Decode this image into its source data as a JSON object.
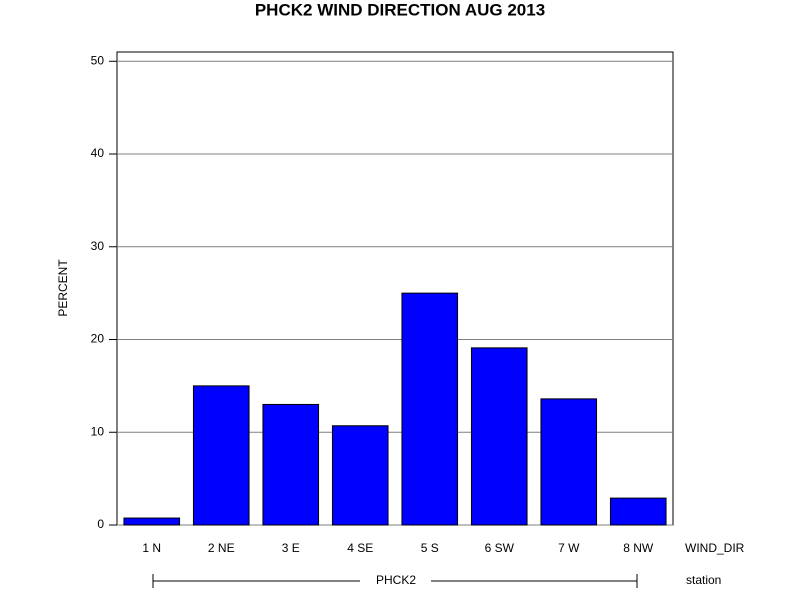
{
  "chart_data": {
    "type": "bar",
    "title": "PHCK2 WIND DIRECTION AUG 2013",
    "y_label": "PERCENT",
    "x_label": "WIND_DIR",
    "group_axis_label": "station",
    "group": "PHCK2",
    "categories": [
      "1 N",
      "2 NE",
      "3 E",
      "4 SE",
      "5 S",
      "6 SW",
      "7 W",
      "8 NW"
    ],
    "values": [
      0.75,
      15,
      13,
      10.7,
      25,
      19.1,
      13.6,
      2.9
    ],
    "color": "#0000ff",
    "ylim": [
      0,
      51
    ],
    "yticks": [
      0,
      10,
      20,
      30,
      40,
      50
    ],
    "grid": true
  }
}
